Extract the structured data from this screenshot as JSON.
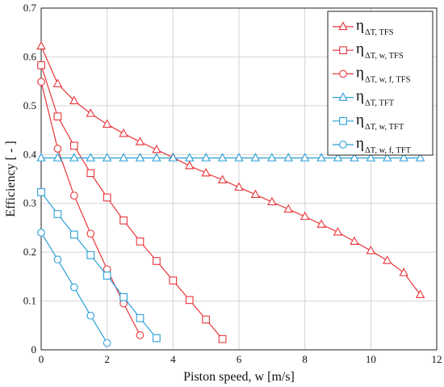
{
  "chart_data": {
    "type": "line",
    "xlabel": "Piston speed, w [m/s]",
    "ylabel": "Efficiency [ - ]",
    "xlim": [
      0,
      12
    ],
    "ylim": [
      0,
      0.7
    ],
    "xticks": [
      "0",
      "2",
      "4",
      "6",
      "8",
      "10",
      "12"
    ],
    "yticks": [
      "0",
      "0.1",
      "0.2",
      "0.3",
      "0.4",
      "0.5",
      "0.6",
      "0.7"
    ],
    "grid": true,
    "legend_position": "top-right",
    "series": [
      {
        "symbol": "η",
        "subscript": "ΔT, TFS",
        "color": "#e8353a",
        "marker": "triangle",
        "points": [
          [
            0,
            0.622
          ],
          [
            0.5,
            0.545
          ],
          [
            1,
            0.51
          ],
          [
            1.5,
            0.484
          ],
          [
            2,
            0.462
          ],
          [
            2.5,
            0.443
          ],
          [
            3,
            0.426
          ],
          [
            3.5,
            0.41
          ],
          [
            4,
            0.394
          ],
          [
            4.5,
            0.377
          ],
          [
            5,
            0.362
          ],
          [
            5.5,
            0.348
          ],
          [
            6,
            0.333
          ],
          [
            6.5,
            0.318
          ],
          [
            7,
            0.303
          ],
          [
            7.5,
            0.288
          ],
          [
            8,
            0.273
          ],
          [
            8.5,
            0.257
          ],
          [
            9,
            0.241
          ],
          [
            9.5,
            0.222
          ],
          [
            10,
            0.203
          ],
          [
            10.5,
            0.183
          ],
          [
            11,
            0.158
          ],
          [
            11.5,
            0.113
          ]
        ]
      },
      {
        "symbol": "η",
        "subscript": "ΔT, w, TFS",
        "color": "#e8353a",
        "marker": "square",
        "points": [
          [
            0,
            0.583
          ],
          [
            0.5,
            0.478
          ],
          [
            1,
            0.418
          ],
          [
            1.5,
            0.362
          ],
          [
            2,
            0.312
          ],
          [
            2.5,
            0.265
          ],
          [
            3,
            0.222
          ],
          [
            3.5,
            0.182
          ],
          [
            4,
            0.142
          ],
          [
            4.5,
            0.102
          ],
          [
            5,
            0.062
          ],
          [
            5.5,
            0.022
          ]
        ]
      },
      {
        "symbol": "η",
        "subscript": "ΔT, w, f, TFS",
        "color": "#e8353a",
        "marker": "circle",
        "points": [
          [
            0,
            0.549
          ],
          [
            0.5,
            0.412
          ],
          [
            1,
            0.316
          ],
          [
            1.5,
            0.238
          ],
          [
            2,
            0.165
          ],
          [
            2.5,
            0.095
          ],
          [
            3,
            0.03
          ]
        ]
      },
      {
        "symbol": "η",
        "subscript": "ΔT, TFT",
        "color": "#2a9fd6",
        "marker": "triangle",
        "points": [
          [
            0,
            0.393
          ],
          [
            0.5,
            0.393
          ],
          [
            1,
            0.393
          ],
          [
            1.5,
            0.393
          ],
          [
            2,
            0.393
          ],
          [
            2.5,
            0.393
          ],
          [
            3,
            0.393
          ],
          [
            3.5,
            0.393
          ],
          [
            4,
            0.393
          ],
          [
            4.5,
            0.393
          ],
          [
            5,
            0.393
          ],
          [
            5.5,
            0.393
          ],
          [
            6,
            0.393
          ],
          [
            6.5,
            0.393
          ],
          [
            7,
            0.393
          ],
          [
            7.5,
            0.393
          ],
          [
            8,
            0.393
          ],
          [
            8.5,
            0.393
          ],
          [
            9,
            0.393
          ],
          [
            9.5,
            0.393
          ],
          [
            10,
            0.393
          ],
          [
            10.5,
            0.393
          ],
          [
            11,
            0.393
          ],
          [
            11.5,
            0.393
          ]
        ]
      },
      {
        "symbol": "η",
        "subscript": "ΔT, w, TFT",
        "color": "#2a9fd6",
        "marker": "square",
        "points": [
          [
            0,
            0.323
          ],
          [
            0.5,
            0.278
          ],
          [
            1,
            0.236
          ],
          [
            1.5,
            0.194
          ],
          [
            2,
            0.152
          ],
          [
            2.5,
            0.108
          ],
          [
            3,
            0.065
          ],
          [
            3.5,
            0.024
          ]
        ]
      },
      {
        "symbol": "η",
        "subscript": "ΔT, w, f, TFT",
        "color": "#2a9fd6",
        "marker": "circle",
        "points": [
          [
            0,
            0.24
          ],
          [
            0.5,
            0.185
          ],
          [
            1,
            0.128
          ],
          [
            1.5,
            0.07
          ],
          [
            2,
            0.014
          ]
        ]
      }
    ]
  }
}
